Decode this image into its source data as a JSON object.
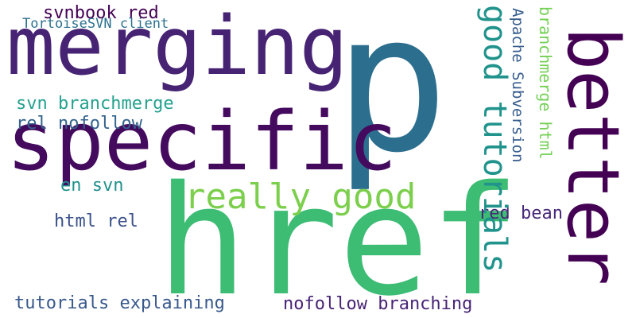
{
  "words": {
    "p": {
      "text": "p",
      "color": "#2c6e8e"
    },
    "href": {
      "text": "href",
      "color": "#3dbc74"
    },
    "merging": {
      "text": "merging",
      "color": "#472374"
    },
    "specific": {
      "text": "specific",
      "color": "#440a5e"
    },
    "better": {
      "text": "better",
      "color": "#440154"
    },
    "good_tutorials": {
      "text": "good tutorials",
      "color": "#20938c"
    },
    "really_good": {
      "text": "really good",
      "color": "#7ccf4c"
    },
    "apache_subversion": {
      "text": "Apache Subversion",
      "color": "#365c8d"
    },
    "branchmerge_html": {
      "text": "branchmerge html",
      "color": "#74d055"
    },
    "svnbook_red": {
      "text": "svnbook red",
      "color": "#440154"
    },
    "tortoisesvn_client": {
      "text": "TortoiseSVN client",
      "color": "#2c728e"
    },
    "svn_branchmerge": {
      "text": "svn branchmerge",
      "color": "#25a18e"
    },
    "rel_nofollow": {
      "text": "rel nofollow",
      "color": "#33638d"
    },
    "en_svn": {
      "text": "en svn",
      "color": "#21918c"
    },
    "html_rel": {
      "text": "html rel",
      "color": "#3b528b"
    },
    "red_bean": {
      "text": "red bean",
      "color": "#482878"
    },
    "tutorials_explaining": {
      "text": "tutorials explaining",
      "color": "#38598c"
    },
    "nofollow_branching": {
      "text": "nofollow branching",
      "color": "#482475"
    }
  }
}
